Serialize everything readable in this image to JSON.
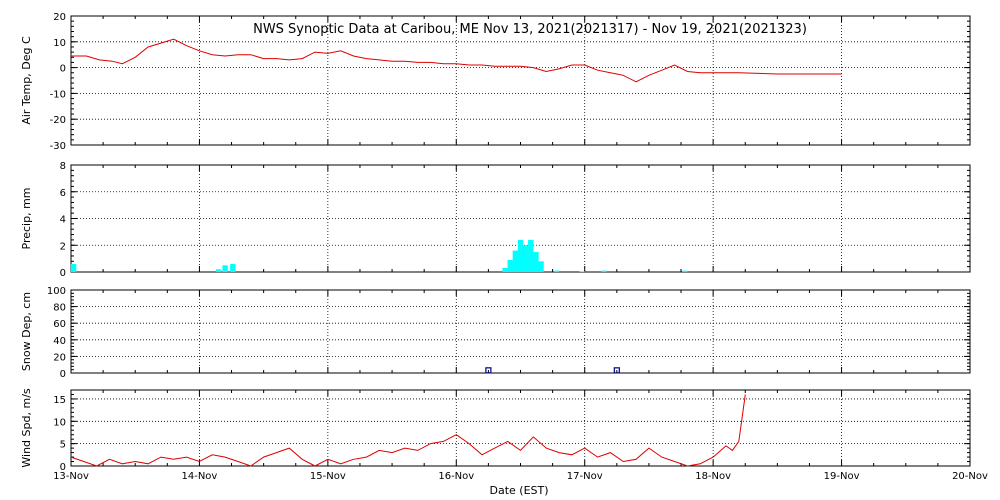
{
  "chart_data": {
    "title": "NWS Synoptic Data at Caribou, ME    Nov 13, 2021(2021317) - Nov 19, 2021(2021323)",
    "xlabel": "Date (EST)",
    "x_ticks": [
      "13-Nov",
      "14-Nov",
      "15-Nov",
      "16-Nov",
      "17-Nov",
      "18-Nov",
      "19-Nov",
      "20-Nov"
    ],
    "colors": {
      "temp": "#dd0000",
      "precip": "#00ffff",
      "snow": "#000080",
      "wind": "#dd0000"
    },
    "panels": [
      {
        "id": "temp",
        "type": "line",
        "ylabel": "Air Temp, Deg C",
        "ylim": [
          -30,
          20
        ],
        "yticks": [
          -30,
          -20,
          -10,
          0,
          10,
          20
        ],
        "grid": true,
        "x": [
          0,
          0.12,
          0.22,
          0.32,
          0.4,
          0.5,
          0.6,
          0.7,
          0.8,
          0.9,
          1.0,
          1.1,
          1.2,
          1.3,
          1.4,
          1.5,
          1.6,
          1.7,
          1.8,
          1.9,
          2.0,
          2.1,
          2.2,
          2.3,
          2.4,
          2.5,
          2.6,
          2.7,
          2.8,
          2.9,
          3.0,
          3.1,
          3.2,
          3.3,
          3.4,
          3.5,
          3.6,
          3.7,
          3.8,
          3.9,
          4.0,
          4.1,
          4.2,
          4.25,
          4.3,
          4.4,
          4.5,
          4.6,
          4.7,
          4.8,
          4.9,
          5.0,
          5.2,
          5.5,
          6.0
        ],
        "values": [
          4.5,
          4.5,
          3,
          2.5,
          1.5,
          4,
          8,
          9.5,
          11,
          8.5,
          6.5,
          5,
          4.5,
          5,
          5,
          3.5,
          3.5,
          3,
          3.5,
          6,
          5.5,
          6.5,
          4.5,
          3.5,
          3,
          2.5,
          2.5,
          2,
          2,
          1.5,
          1.5,
          1,
          1,
          0.5,
          0.5,
          0.5,
          0,
          -1.5,
          -0.5,
          1,
          1,
          -1,
          -2,
          -2.5,
          -3,
          -5.5,
          -3,
          -1,
          1,
          -1.5,
          -2,
          -2,
          -2,
          -2.5,
          -2.5
        ]
      },
      {
        "id": "precip",
        "type": "bar",
        "ylabel": "Precip, mm",
        "ylim": [
          0,
          8
        ],
        "yticks": [
          0,
          2,
          4,
          6,
          8
        ],
        "grid": true,
        "bar_width": 0.042,
        "x": [
          0.02,
          1.15,
          1.2,
          1.26,
          3.38,
          3.42,
          3.46,
          3.5,
          3.54,
          3.58,
          3.62,
          3.66,
          3.78,
          3.98,
          4.15,
          4.78
        ],
        "values": [
          0.6,
          0.2,
          0.5,
          0.6,
          0.3,
          0.9,
          1.6,
          2.4,
          2.0,
          2.4,
          1.5,
          0.8,
          0.1,
          0.05,
          0.1,
          0.1
        ]
      },
      {
        "id": "snow",
        "type": "scatter",
        "ylabel": "Snow Dep, cm",
        "ylim": [
          0,
          100
        ],
        "yticks": [
          0,
          20,
          40,
          60,
          80,
          100
        ],
        "grid": true,
        "x": [
          3.25,
          4.25
        ],
        "values": [
          2,
          2
        ]
      },
      {
        "id": "wind",
        "type": "line",
        "ylabel": "Wind Spd, m/s",
        "ylim": [
          0,
          17
        ],
        "yticks": [
          0,
          5,
          10,
          15
        ],
        "grid": true,
        "x": [
          0,
          0.1,
          0.2,
          0.3,
          0.4,
          0.5,
          0.6,
          0.7,
          0.8,
          0.9,
          1.0,
          1.1,
          1.2,
          1.3,
          1.4,
          1.5,
          1.6,
          1.7,
          1.8,
          1.9,
          2.0,
          2.1,
          2.2,
          2.3,
          2.4,
          2.5,
          2.6,
          2.7,
          2.8,
          2.9,
          3.0,
          3.1,
          3.2,
          3.3,
          3.4,
          3.5,
          3.6,
          3.7,
          3.8,
          3.9,
          4.0,
          4.1,
          4.2,
          4.3,
          4.4,
          4.5,
          4.6,
          4.7,
          4.8,
          4.9,
          5.0,
          5.1,
          5.15,
          5.2,
          5.25
        ],
        "values": [
          2,
          1,
          0,
          1.5,
          0.5,
          1,
          0.5,
          2,
          1.5,
          2,
          1,
          2.5,
          2,
          1,
          0,
          2,
          3,
          4,
          1.5,
          0,
          1.5,
          0.5,
          1.5,
          2,
          3.5,
          3,
          4,
          3.5,
          5,
          5.5,
          7,
          5,
          2.5,
          4,
          5.5,
          3.5,
          6.5,
          4,
          3,
          2.5,
          4,
          2,
          3,
          1,
          1.5,
          4,
          2,
          1,
          0,
          0.5,
          2,
          4.5,
          3.5,
          5.5,
          16
        ]
      }
    ]
  }
}
